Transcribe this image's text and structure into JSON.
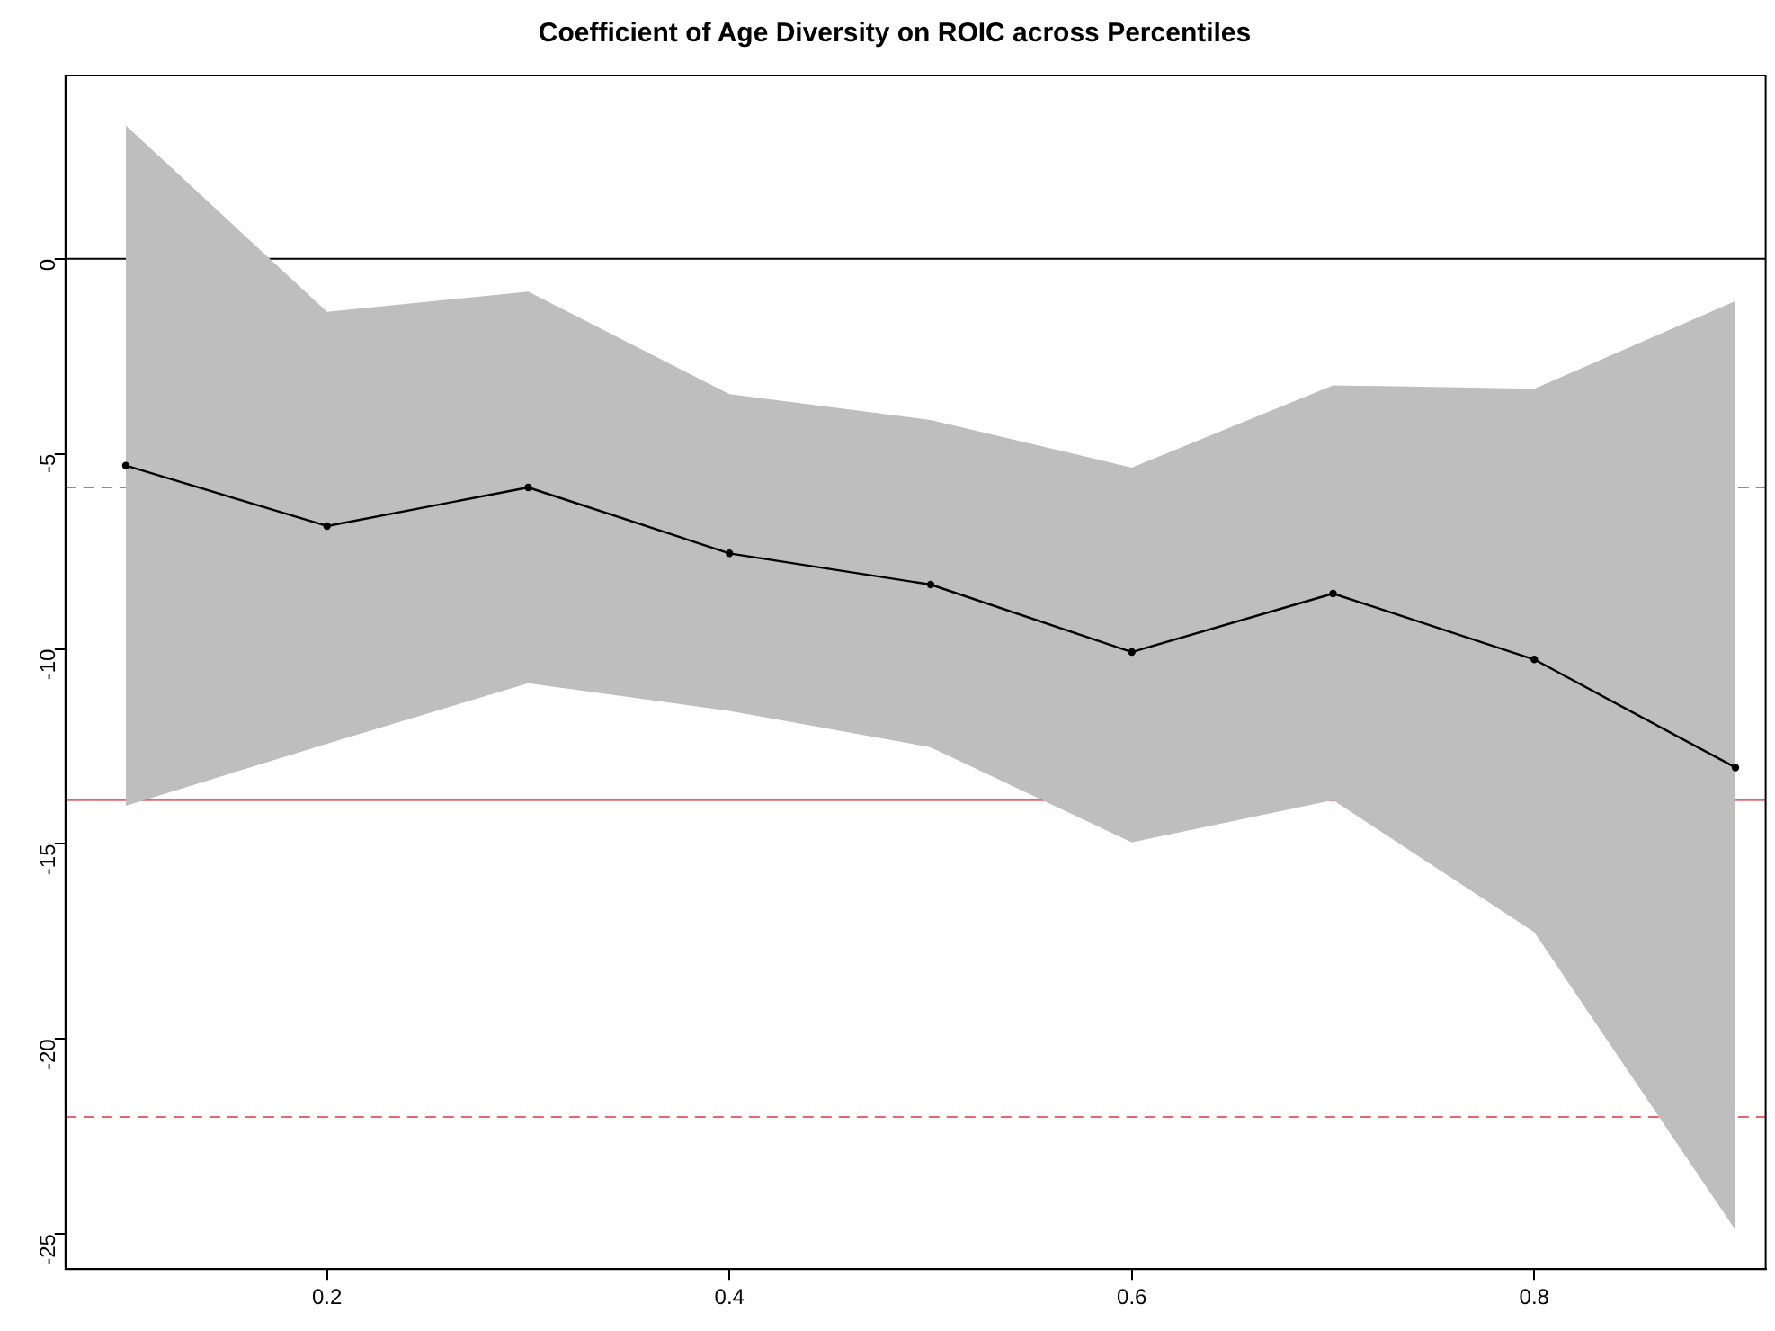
{
  "chart_data": {
    "type": "line",
    "title": "Coefficient of Age Diversity on ROIC across Percentiles",
    "x": [
      0.1,
      0.2,
      0.3,
      0.4,
      0.5,
      0.6,
      0.7,
      0.8,
      0.9
    ],
    "series": [
      {
        "color": "#000000",
        "values": [
          -5.3,
          -6.85,
          -5.86,
          -7.55,
          -8.35,
          -10.08,
          -8.58,
          -10.27,
          -13.04
        ],
        "lower": [
          -14.02,
          -12.43,
          -10.88,
          -11.59,
          -12.52,
          -14.96,
          -13.88,
          -17.26,
          -24.9
        ],
        "upper": [
          3.42,
          -1.36,
          -0.84,
          -3.47,
          -4.13,
          -5.35,
          -3.24,
          -3.33,
          -1.08
        ]
      }
    ],
    "xlim": [
      0.07,
      0.915
    ],
    "xticks": [
      0.2,
      0.4,
      0.6,
      0.8
    ],
    "ylim": [
      -25.9,
      4.7
    ],
    "yticks": [
      0,
      -5,
      -10,
      -15,
      -20,
      -25
    ],
    "ref_lines": [
      {
        "axis": "y",
        "value": 0,
        "color": "#000000",
        "line_style": "solid"
      },
      {
        "axis": "y",
        "value": -5.86,
        "color": "#e8646e",
        "line_style": "dashed"
      },
      {
        "axis": "y",
        "value": -13.88,
        "color": "#e8646e",
        "line_style": "solid"
      },
      {
        "axis": "y",
        "value": -22,
        "color": "#e8646e",
        "line_style": "dashed"
      }
    ],
    "grid": false,
    "legend": false,
    "marker": "circle",
    "line_style": "solid"
  }
}
